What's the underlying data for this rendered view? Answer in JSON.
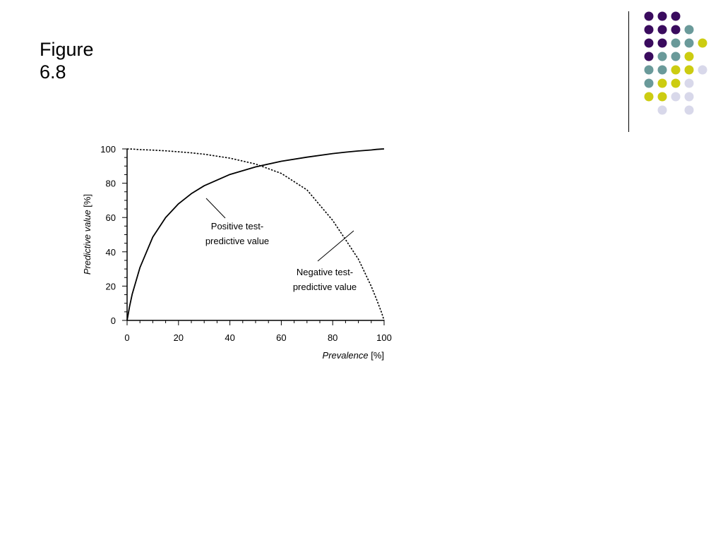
{
  "slide": {
    "title_line1": "Figure",
    "title_line2": "6.8"
  },
  "decoration": {
    "colors": {
      "purple": "#3a0b5e",
      "teal": "#6a9a9a",
      "yellow": "#cccc11",
      "lavender": "#d8d8ea"
    },
    "rows": [
      [
        "purple",
        "purple",
        "purple",
        null,
        null
      ],
      [
        "purple",
        "purple",
        "purple",
        "teal",
        null
      ],
      [
        "purple",
        "purple",
        "teal",
        "teal",
        "yellow"
      ],
      [
        "purple",
        "teal",
        "teal",
        "yellow",
        null
      ],
      [
        "teal",
        "teal",
        "yellow",
        "yellow",
        "lavender"
      ],
      [
        "teal",
        "yellow",
        "yellow",
        "lavender",
        null
      ],
      [
        "yellow",
        "yellow",
        "lavender",
        "lavender",
        null
      ],
      [
        null,
        "lavender",
        null,
        "lavender",
        null
      ]
    ]
  },
  "chart_data": {
    "type": "line",
    "xlabel_name": "Prevalence",
    "xlabel_unit": " [%]",
    "ylabel_name": "Predictive value",
    "ylabel_unit": " [%]",
    "xlim": [
      0,
      100
    ],
    "ylim": [
      0,
      100
    ],
    "xticks": [
      0,
      20,
      40,
      60,
      80,
      100
    ],
    "yticks": [
      0,
      20,
      40,
      60,
      80,
      100
    ],
    "grid": false,
    "legend": "none",
    "x": [
      0,
      1,
      2,
      5,
      10,
      15,
      20,
      25,
      30,
      40,
      50,
      60,
      70,
      80,
      85,
      90,
      95,
      97,
      99,
      100
    ],
    "series": [
      {
        "style": "solid",
        "values": [
          0,
          8.3,
          15.4,
          30.8,
          48.6,
          60.0,
          68.0,
          73.9,
          78.5,
          85.1,
          89.5,
          92.8,
          95.2,
          97.3,
          98.1,
          98.8,
          99.4,
          99.7,
          99.9,
          100
        ]
      },
      {
        "style": "dotted",
        "values": [
          100,
          99.9,
          99.9,
          99.6,
          99.3,
          98.9,
          98.3,
          97.7,
          96.9,
          94.6,
          91.2,
          85.7,
          76.1,
          58.3,
          47.1,
          35.7,
          19.9,
          12.5,
          4.6,
          0
        ]
      }
    ],
    "annotations": [
      {
        "line1": "Positive test-",
        "line2": "predictive value"
      },
      {
        "line1": "Negative test-",
        "line2": "predictive value"
      }
    ]
  }
}
